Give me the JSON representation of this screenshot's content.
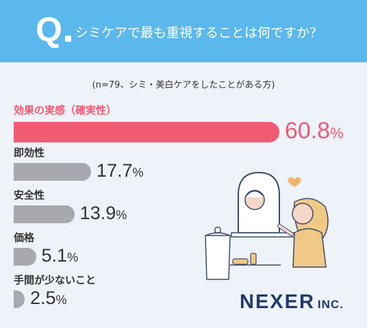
{
  "header": {
    "q_letter": "Q",
    "question": "シミケアで最も重視することは何ですか？"
  },
  "note": "(n=79、シミ・美白ケアをしたことがある方)",
  "chart_data": {
    "type": "bar",
    "orientation": "horizontal",
    "categories": [
      "効果の実感（確実性）",
      "即効性",
      "安全性",
      "価格",
      "手間が少ないこと"
    ],
    "values": [
      60.8,
      17.7,
      13.9,
      5.1,
      2.5
    ],
    "value_labels": [
      "60.8",
      "17.7",
      "13.9",
      "5.1",
      "2.5"
    ],
    "unit": "%",
    "highlight_color": "#f05a73",
    "bar_color": "#a7a9ae",
    "text_color": "#333333"
  },
  "brand": {
    "name": "NEXER",
    "suffix": "INC."
  }
}
